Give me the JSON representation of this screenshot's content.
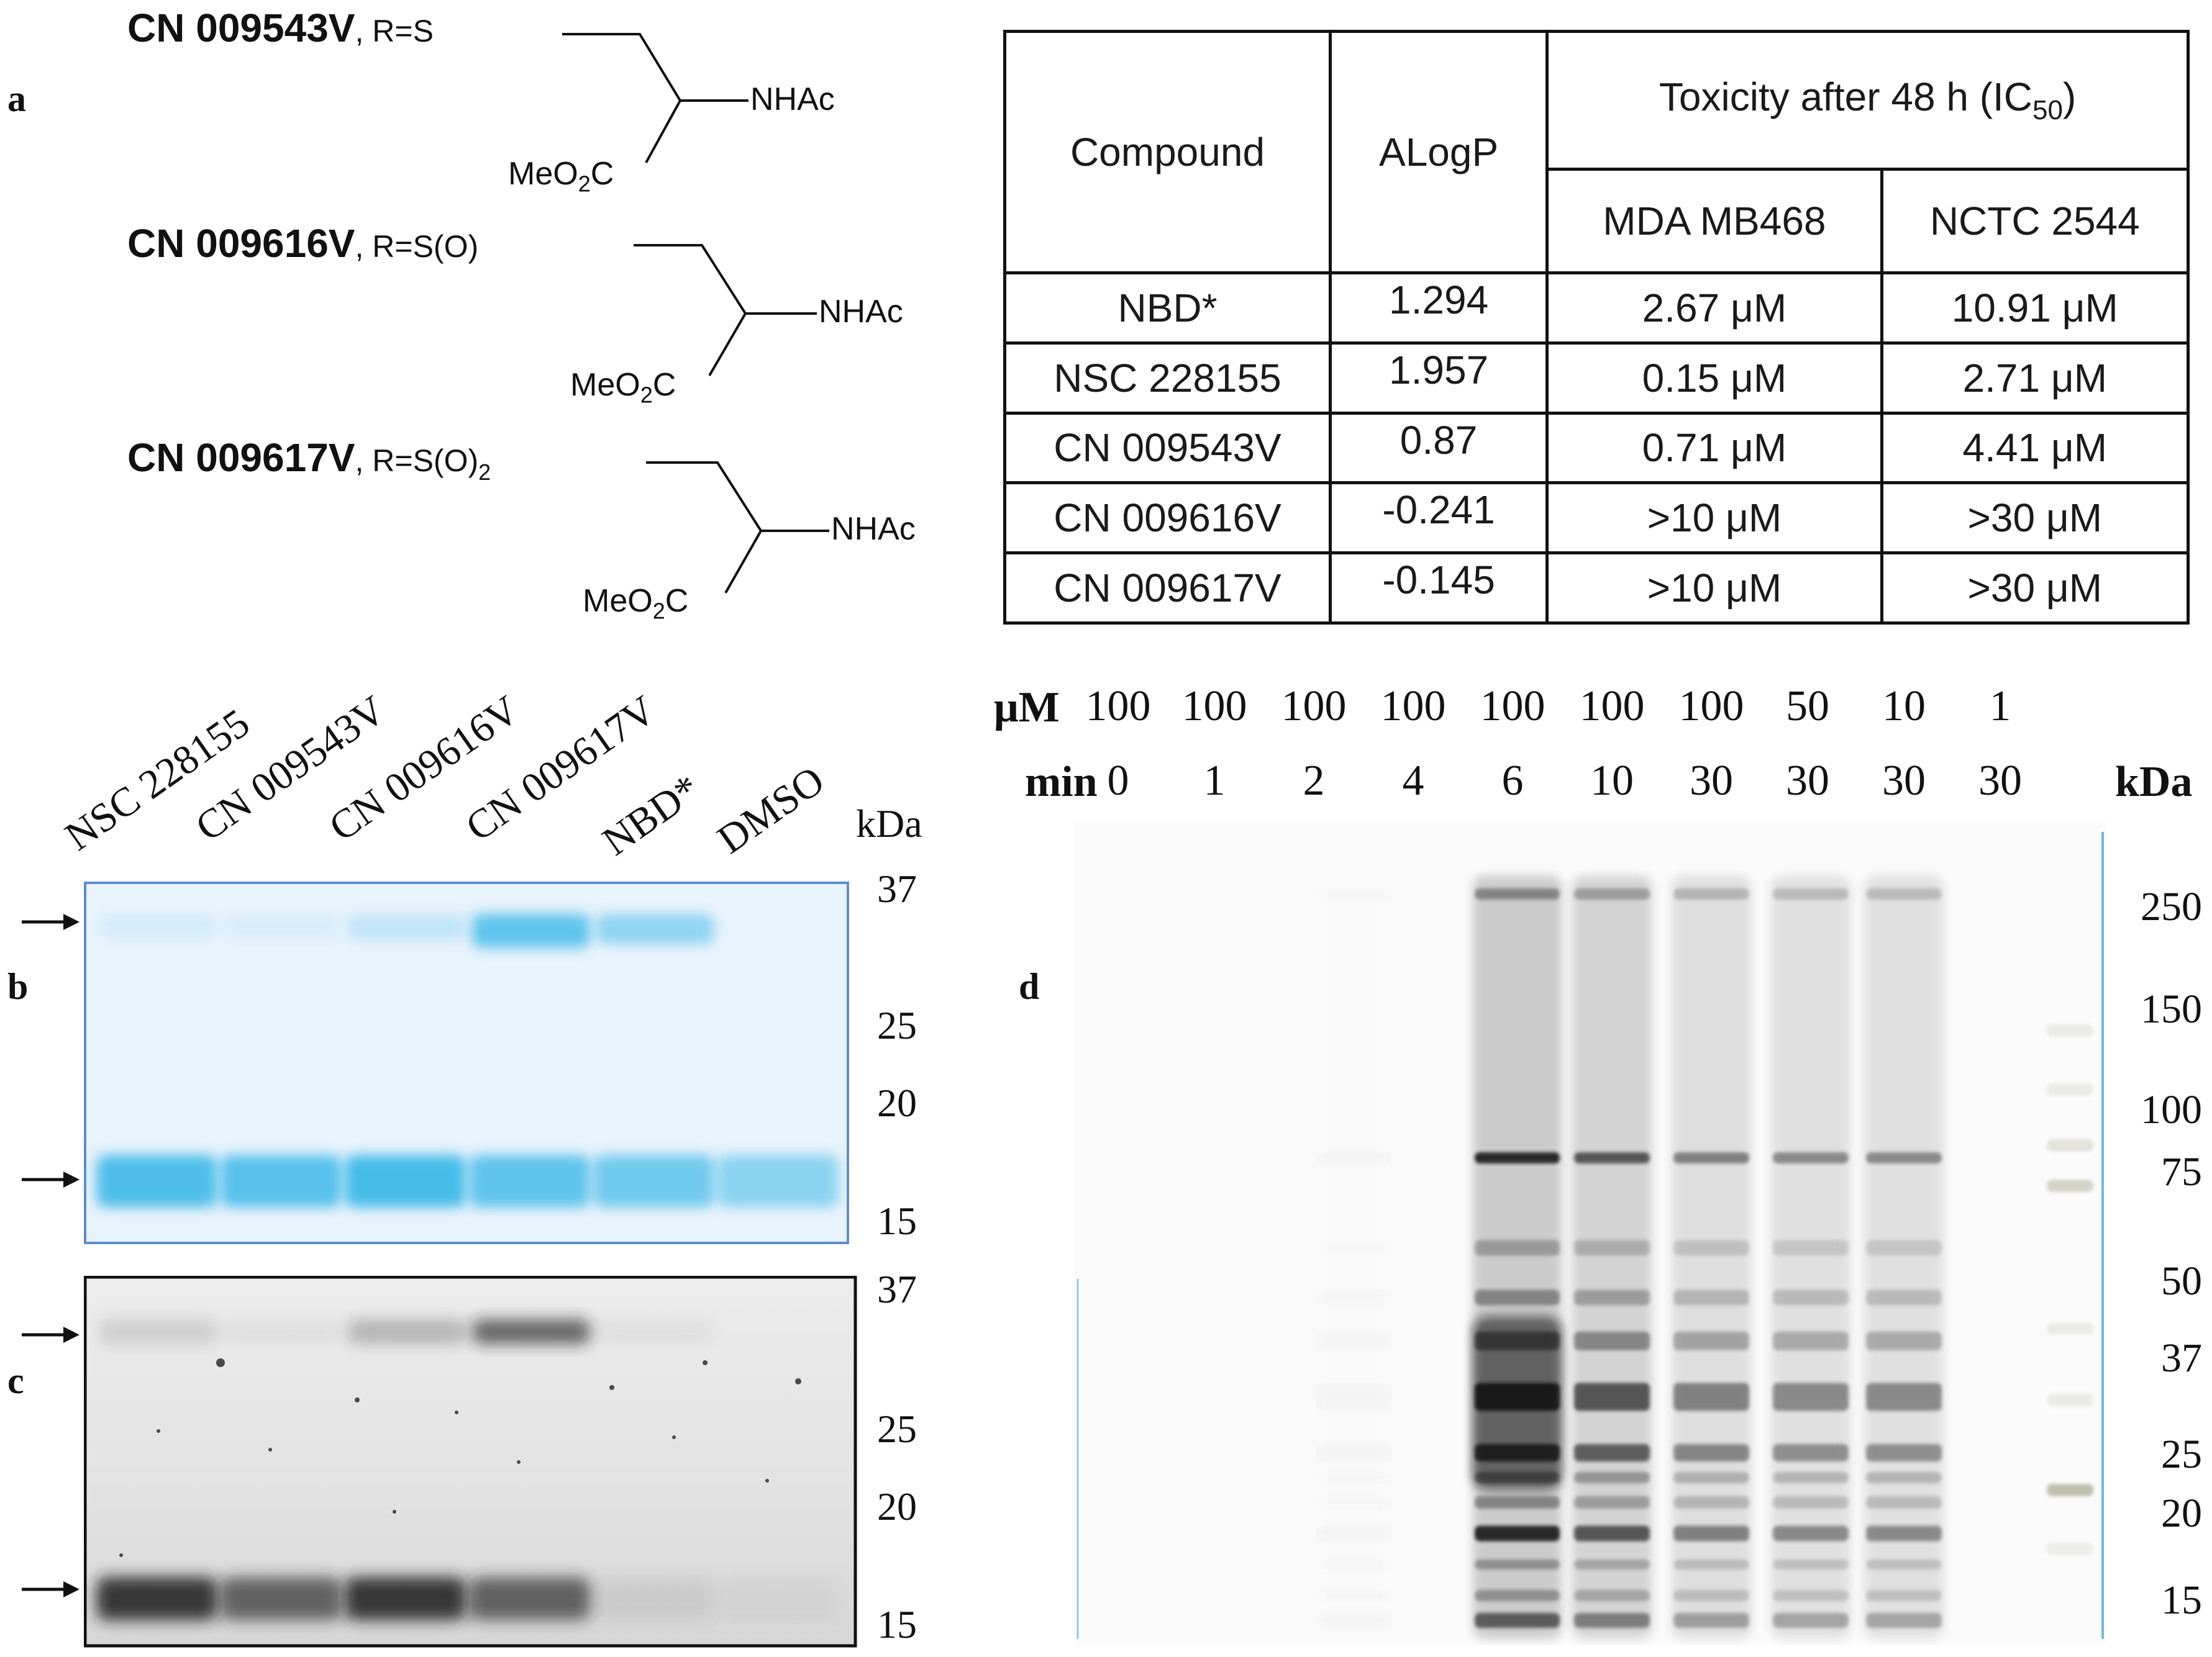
{
  "panel_labels": {
    "a": "a",
    "b": "b",
    "c": "c",
    "d": "d"
  },
  "compounds": [
    {
      "name": "CN 009543V",
      "r_label": ", R=",
      "r_group": "S",
      "r_sub": ""
    },
    {
      "name": "CN 009616V",
      "r_label": ", R=",
      "r_group": "S(O)",
      "r_sub": ""
    },
    {
      "name": "CN 009617V",
      "r_label": ", R=",
      "r_group": "S(O)",
      "r_sub": "2"
    }
  ],
  "structure": {
    "amide": "NHAc",
    "ester_prefix": "MeO",
    "ester_sub": "2",
    "ester_suffix": "C"
  },
  "table": {
    "col_compound": "Compound",
    "col_alogp": "ALogP",
    "col_tox_prefix": "Toxicity after 48 h (IC",
    "col_tox_sub": "50",
    "col_tox_suffix": ")",
    "col_line1": "MDA MB468",
    "col_line2": "NCTC 2544",
    "rows": [
      {
        "compound": "NBD*",
        "alogp": "1.294",
        "mda": "2.67 μM",
        "nctc": "10.91 μM"
      },
      {
        "compound": "NSC 228155",
        "alogp": "1.957",
        "mda": "0.15 μM",
        "nctc": "2.71 μM"
      },
      {
        "compound": "CN 009543V",
        "alogp": "0.87",
        "mda": "0.71 μM",
        "nctc": "4.41 μM"
      },
      {
        "compound": "CN 009616V",
        "alogp": "-0.241",
        "mda": ">10 μM",
        "nctc": ">30 μM"
      },
      {
        "compound": "CN 009617V",
        "alogp": "-0.145",
        "mda": ">10 μM",
        "nctc": ">30 μM"
      }
    ]
  },
  "gel_bc": {
    "lanes": [
      "NSC 228155",
      "CN 009543V",
      "CN 009616V",
      "CN 009617V",
      "NBD*",
      "DMSO"
    ],
    "unit": "kDa",
    "b_markers": [
      "37",
      "25",
      "20",
      "15"
    ],
    "c_markers": [
      "37",
      "25",
      "20",
      "15"
    ],
    "band_color_b": "#35b6e8",
    "upper_band_intensity": [
      0.12,
      0.1,
      0.25,
      0.85,
      0.55,
      0.0
    ],
    "lower_band_intensity": [
      0.9,
      0.85,
      0.95,
      0.8,
      0.7,
      0.55
    ],
    "c_upper_band_intensity": [
      0.15,
      0.05,
      0.3,
      0.75,
      0.05,
      0.0
    ],
    "c_lower_band_intensity": [
      0.95,
      0.7,
      0.95,
      0.7,
      0.08,
      0.04
    ]
  },
  "gel_d": {
    "conc_label": "μM",
    "time_label": "min",
    "unit": "kDa",
    "conc": [
      "100",
      "100",
      "100",
      "100",
      "100",
      "100",
      "100",
      "50",
      "10",
      "1"
    ],
    "time": [
      "0",
      "1",
      "2",
      "4",
      "6",
      "10",
      "30",
      "30",
      "30",
      "30"
    ],
    "markers": [
      "250",
      "150",
      "100",
      "75",
      "50",
      "37",
      "25",
      "20",
      "15"
    ],
    "lane_intensity": [
      0.0,
      0.0,
      0.02,
      0.0,
      1.0,
      0.85,
      0.6,
      0.55,
      0.55,
      0.0
    ]
  }
}
